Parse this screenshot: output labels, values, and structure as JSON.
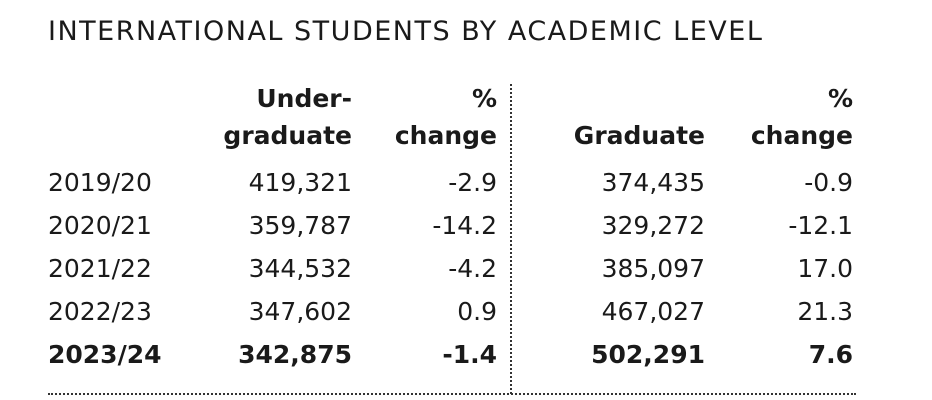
{
  "title": "INTERNATIONAL STUDENTS BY ACADEMIC LEVEL",
  "table": {
    "headers": [
      [
        "Under-",
        "graduate"
      ],
      [
        "%",
        "change"
      ],
      [
        "Graduate"
      ],
      [
        "%",
        "change"
      ]
    ],
    "rows": [
      [
        "2019/20",
        "419,321",
        "-2.9",
        "374,435",
        "-0.9"
      ],
      [
        "2020/21",
        "359,787",
        "-14.2",
        "329,272",
        "-12.1"
      ],
      [
        "2021/22",
        "344,532",
        "-4.2",
        "385,097",
        "17.0"
      ],
      [
        "2022/23",
        "347,602",
        "0.9",
        "467,027",
        "21.3"
      ],
      [
        "2023/24",
        "342,875",
        "-1.4",
        "502,291",
        "7.6"
      ]
    ]
  }
}
